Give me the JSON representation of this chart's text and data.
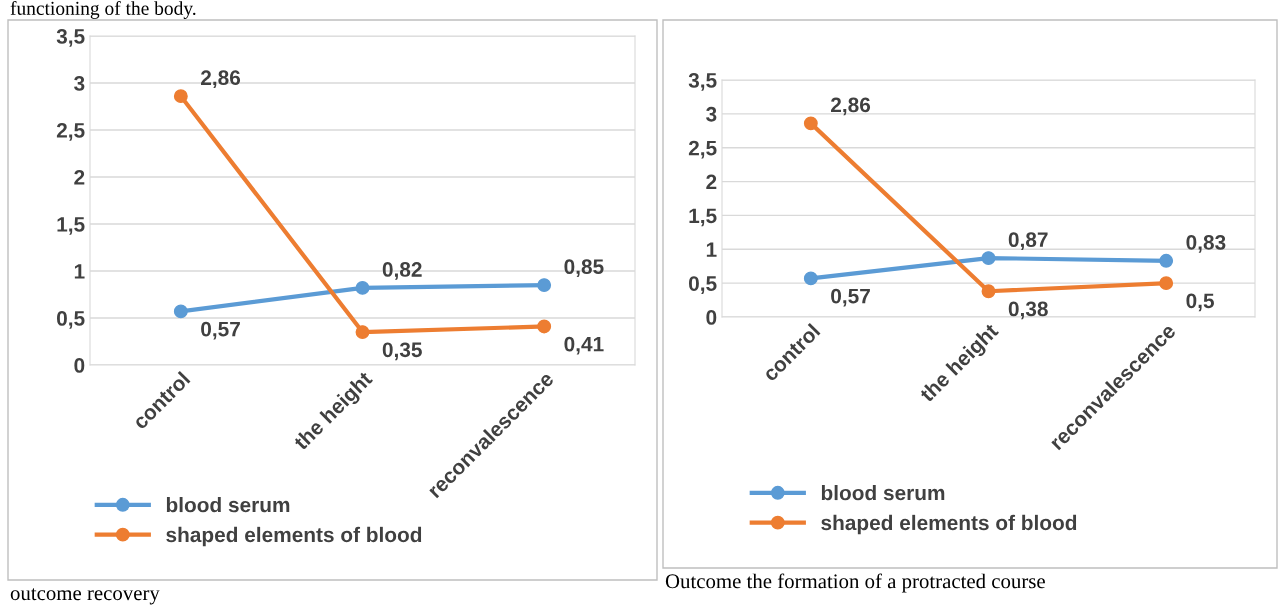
{
  "chart_data": [
    {
      "type": "line",
      "categories": [
        "control",
        "the height",
        "reconvalescence"
      ],
      "ylim": [
        0,
        3.5
      ],
      "yticks": [
        {
          "value": 0,
          "label": "0"
        },
        {
          "value": 0.5,
          "label": "0,5"
        },
        {
          "value": 1,
          "label": "1"
        },
        {
          "value": 1.5,
          "label": "1,5"
        },
        {
          "value": 2,
          "label": "2"
        },
        {
          "value": 2.5,
          "label": "2,5"
        },
        {
          "value": 3,
          "label": "3"
        },
        {
          "value": 3.5,
          "label": "3,5"
        }
      ],
      "grid": "y",
      "legend": "bottom",
      "marker": "circle",
      "line_style": "solid",
      "series": [
        {
          "name": "blood serum",
          "color": "#5b9bd5",
          "values": [
            0.57,
            0.82,
            0.85
          ],
          "value_labels": [
            "0,57",
            "0,82",
            "0,85"
          ]
        },
        {
          "name": "shaped elements of blood",
          "color": "#ed7d31",
          "values": [
            2.86,
            0.35,
            0.41
          ],
          "value_labels": [
            "2,86",
            "0,35",
            "0,41"
          ]
        }
      ],
      "annotations": [
        "functioning of the body.",
        "outcome recovery"
      ]
    },
    {
      "type": "line",
      "categories": [
        "control",
        "the height",
        "reconvalescence"
      ],
      "ylim": [
        0,
        3.5
      ],
      "yticks": [
        {
          "value": 0,
          "label": "0"
        },
        {
          "value": 0.5,
          "label": "0,5"
        },
        {
          "value": 1,
          "label": "1"
        },
        {
          "value": 1.5,
          "label": "1,5"
        },
        {
          "value": 2,
          "label": "2"
        },
        {
          "value": 2.5,
          "label": "2,5"
        },
        {
          "value": 3,
          "label": "3"
        },
        {
          "value": 3.5,
          "label": "3,5"
        }
      ],
      "grid": "y",
      "legend": "bottom",
      "marker": "circle",
      "line_style": "solid",
      "series": [
        {
          "name": "blood serum",
          "color": "#5b9bd5",
          "values": [
            0.57,
            0.87,
            0.83
          ],
          "value_labels": [
            "0,57",
            "0,87",
            "0,83"
          ]
        },
        {
          "name": "shaped elements of blood",
          "color": "#ed7d31",
          "values": [
            2.86,
            0.38,
            0.5
          ],
          "value_labels": [
            "2,86",
            "0,38",
            "0,5"
          ]
        }
      ],
      "annotations": [
        "Outcome the formation of a protracted course"
      ]
    }
  ]
}
